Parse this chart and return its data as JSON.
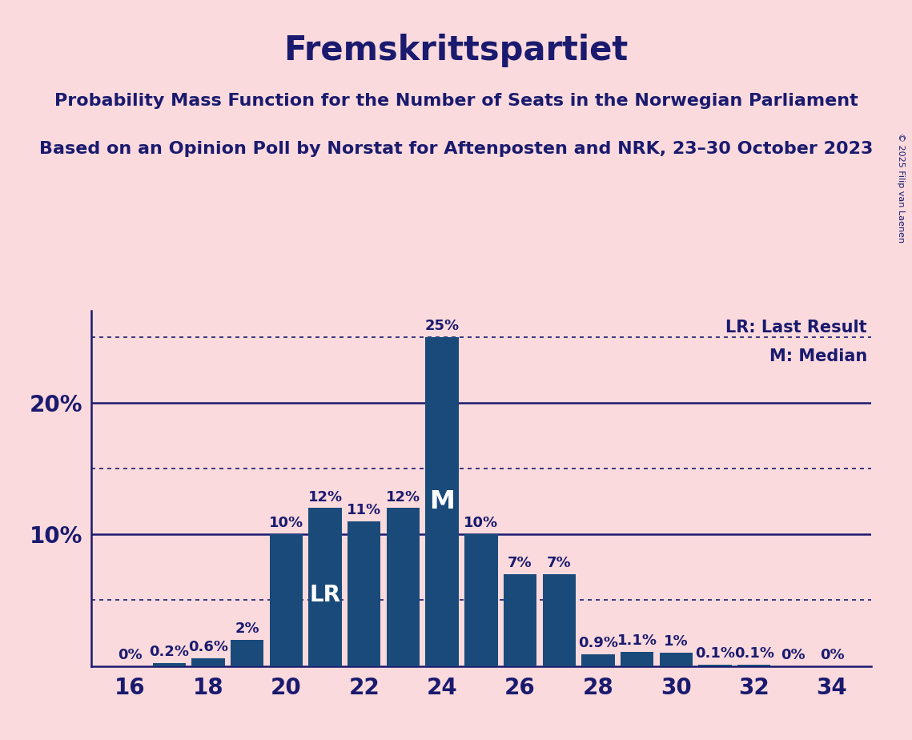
{
  "title": "Fremskrittspartiet",
  "subtitle1": "Probability Mass Function for the Number of Seats in the Norwegian Parliament",
  "subtitle2": "Based on an Opinion Poll by Norstat for Aftenposten and NRK, 23–30 October 2023",
  "copyright": "© 2025 Filip van Laenen",
  "seats": [
    16,
    17,
    18,
    19,
    20,
    21,
    22,
    23,
    24,
    25,
    26,
    27,
    28,
    29,
    30,
    31,
    32,
    33,
    34
  ],
  "probabilities": [
    0.0,
    0.2,
    0.6,
    2.0,
    10.0,
    12.0,
    11.0,
    12.0,
    25.0,
    10.0,
    7.0,
    7.0,
    0.9,
    1.1,
    1.0,
    0.1,
    0.1,
    0.0,
    0.0
  ],
  "bar_color": "#1a4a7a",
  "background_color": "#fadadd",
  "text_color": "#1a1a6e",
  "last_result_seat": 21,
  "median_seat": 24,
  "lr_label": "LR",
  "m_label": "M",
  "legend_lr": "LR: Last Result",
  "legend_m": "M: Median",
  "solid_yticks": [
    10.0,
    20.0
  ],
  "dotted_yticks": [
    5.0,
    15.0,
    25.0
  ],
  "xlim": [
    15.0,
    35.0
  ],
  "ylim": [
    0,
    27
  ],
  "xticks": [
    16,
    18,
    20,
    22,
    24,
    26,
    28,
    30,
    32,
    34
  ],
  "title_fontsize": 30,
  "subtitle_fontsize": 16,
  "bar_label_fontsize": 13,
  "axis_tick_fontsize": 20,
  "legend_fontsize": 15,
  "lr_m_label_fontsize": 20,
  "copyright_fontsize": 8
}
